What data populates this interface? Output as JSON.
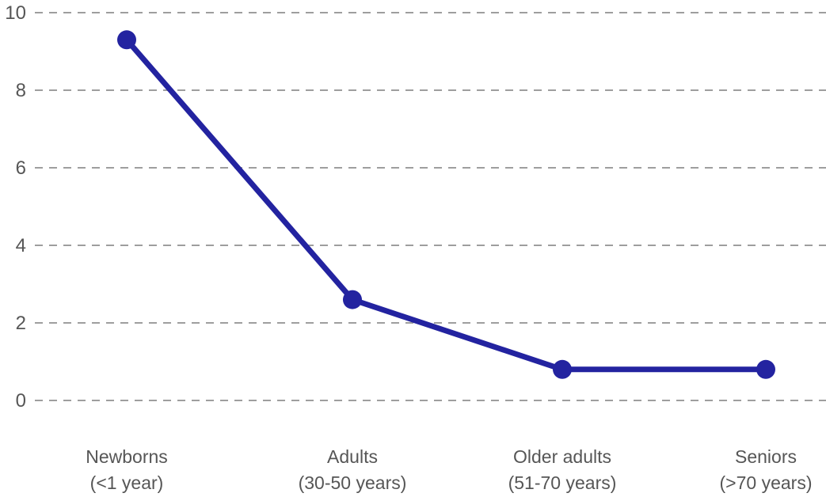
{
  "chart_data": {
    "type": "line",
    "title": "",
    "xlabel": "",
    "ylabel": "",
    "categories": [
      {
        "name": "Newborns",
        "range": "(<1 year)"
      },
      {
        "name": "Adults",
        "range": "(30-50 years)"
      },
      {
        "name": "Older adults",
        "range": "(51-70 years)"
      },
      {
        "name": "Seniors",
        "range": "(>70 years)"
      }
    ],
    "series": [
      {
        "name": "series-1",
        "values": [
          9.3,
          2.6,
          0.8,
          0.8
        ]
      }
    ],
    "ylim": [
      0,
      10
    ],
    "y_ticks": [
      0,
      2,
      4,
      6,
      8,
      10
    ],
    "grid": "dashed-horizontal",
    "legend_position": "none",
    "colors": {
      "series": "#2323a0",
      "gridline": "#9e9e9e",
      "tick_label": "#565656",
      "category_label": "#565656",
      "background": "#ffffff"
    }
  }
}
